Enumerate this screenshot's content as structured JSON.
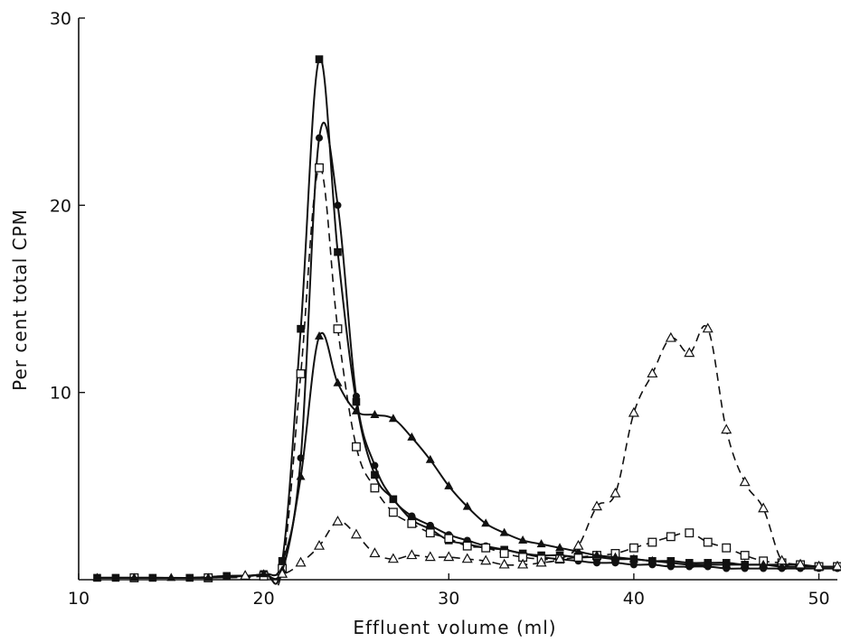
{
  "chart_data": {
    "type": "line",
    "xlabel": "Effluent volume (ml)",
    "ylabel": "Per cent total CPM",
    "xlim": [
      10,
      51
    ],
    "ylim": [
      0,
      30
    ],
    "x_ticks": [
      10,
      20,
      30,
      40,
      50
    ],
    "y_ticks": [
      10,
      20,
      30
    ],
    "grid": false,
    "legend": "none",
    "series": [
      {
        "marker": "filled-square",
        "line": "solid",
        "points": [
          [
            11,
            0.1
          ],
          [
            12,
            0.1
          ],
          [
            14,
            0.1
          ],
          [
            16,
            0.1
          ],
          [
            18,
            0.2
          ],
          [
            20,
            0.3
          ],
          [
            21,
            1.0
          ],
          [
            22,
            13.4
          ],
          [
            23,
            27.8
          ],
          [
            24,
            17.5
          ],
          [
            25,
            9.5
          ],
          [
            26,
            5.6
          ],
          [
            27,
            4.3
          ],
          [
            28,
            3.2
          ],
          [
            29,
            2.7
          ],
          [
            30,
            2.1
          ],
          [
            31,
            1.9
          ],
          [
            32,
            1.7
          ],
          [
            33,
            1.6
          ],
          [
            34,
            1.4
          ],
          [
            35,
            1.3
          ],
          [
            36,
            1.3
          ],
          [
            37,
            1.2
          ],
          [
            38,
            1.2
          ],
          [
            39,
            1.1
          ],
          [
            40,
            1.1
          ],
          [
            41,
            1.0
          ],
          [
            42,
            1.0
          ],
          [
            43,
            0.9
          ],
          [
            44,
            0.9
          ],
          [
            45,
            0.9
          ],
          [
            46,
            0.8
          ],
          [
            47,
            0.8
          ],
          [
            48,
            0.8
          ],
          [
            49,
            0.8
          ],
          [
            50,
            0.7
          ],
          [
            51,
            0.7
          ]
        ]
      },
      {
        "marker": "filled-circle",
        "line": "solid",
        "points": [
          [
            11,
            0.1
          ],
          [
            12,
            0.1
          ],
          [
            14,
            0.1
          ],
          [
            16,
            0.1
          ],
          [
            18,
            0.2
          ],
          [
            20,
            0.3
          ],
          [
            21,
            0.9
          ],
          [
            22,
            6.5
          ],
          [
            23,
            23.6
          ],
          [
            24,
            20.0
          ],
          [
            25,
            9.8
          ],
          [
            26,
            6.1
          ],
          [
            27,
            4.3
          ],
          [
            28,
            3.4
          ],
          [
            29,
            2.9
          ],
          [
            30,
            2.4
          ],
          [
            31,
            2.1
          ],
          [
            32,
            1.8
          ],
          [
            33,
            1.6
          ],
          [
            34,
            1.4
          ],
          [
            35,
            1.2
          ],
          [
            36,
            1.1
          ],
          [
            37,
            1.0
          ],
          [
            38,
            0.9
          ],
          [
            39,
            0.9
          ],
          [
            40,
            0.8
          ],
          [
            41,
            0.8
          ],
          [
            42,
            0.7
          ],
          [
            43,
            0.7
          ],
          [
            44,
            0.7
          ],
          [
            45,
            0.6
          ],
          [
            46,
            0.6
          ],
          [
            47,
            0.6
          ],
          [
            48,
            0.6
          ],
          [
            49,
            0.6
          ],
          [
            50,
            0.6
          ],
          [
            51,
            0.6
          ]
        ]
      },
      {
        "marker": "open-square",
        "line": "dashed",
        "points": [
          [
            13,
            0.1
          ],
          [
            17,
            0.1
          ],
          [
            20,
            0.2
          ],
          [
            21,
            0.6
          ],
          [
            22,
            11.0
          ],
          [
            23,
            22.0
          ],
          [
            24,
            13.4
          ],
          [
            25,
            7.1
          ],
          [
            26,
            4.9
          ],
          [
            27,
            3.6
          ],
          [
            28,
            3.0
          ],
          [
            29,
            2.5
          ],
          [
            30,
            2.2
          ],
          [
            31,
            1.8
          ],
          [
            32,
            1.7
          ],
          [
            33,
            1.4
          ],
          [
            34,
            1.2
          ],
          [
            35,
            1.1
          ],
          [
            36,
            1.1
          ],
          [
            37,
            1.2
          ],
          [
            38,
            1.3
          ],
          [
            39,
            1.4
          ],
          [
            40,
            1.7
          ],
          [
            41,
            2.0
          ],
          [
            42,
            2.3
          ],
          [
            43,
            2.5
          ],
          [
            44,
            2.0
          ],
          [
            45,
            1.7
          ],
          [
            46,
            1.3
          ],
          [
            47,
            1.0
          ],
          [
            48,
            0.9
          ],
          [
            49,
            0.8
          ],
          [
            50,
            0.7
          ],
          [
            51,
            0.7
          ]
        ]
      },
      {
        "marker": "filled-triangle",
        "line": "solid",
        "points": [
          [
            11,
            0.1
          ],
          [
            13,
            0.1
          ],
          [
            15,
            0.1
          ],
          [
            17,
            0.1
          ],
          [
            19,
            0.2
          ],
          [
            20,
            0.3
          ],
          [
            21,
            0.5
          ],
          [
            22,
            5.5
          ],
          [
            23,
            13.0
          ],
          [
            24,
            10.5
          ],
          [
            25,
            9.0
          ],
          [
            26,
            8.8
          ],
          [
            27,
            8.6
          ],
          [
            28,
            7.6
          ],
          [
            29,
            6.4
          ],
          [
            30,
            5.0
          ],
          [
            31,
            3.9
          ],
          [
            32,
            3.0
          ],
          [
            33,
            2.5
          ],
          [
            34,
            2.1
          ],
          [
            35,
            1.9
          ],
          [
            36,
            1.7
          ],
          [
            37,
            1.5
          ],
          [
            38,
            1.3
          ],
          [
            39,
            1.2
          ],
          [
            40,
            1.1
          ],
          [
            41,
            1.0
          ],
          [
            42,
            0.9
          ],
          [
            43,
            0.8
          ],
          [
            44,
            0.8
          ],
          [
            45,
            0.8
          ],
          [
            46,
            0.8
          ],
          [
            47,
            0.8
          ],
          [
            48,
            0.7
          ],
          [
            49,
            0.7
          ],
          [
            50,
            0.7
          ],
          [
            51,
            0.7
          ]
        ]
      },
      {
        "marker": "open-triangle",
        "line": "dashed",
        "points": [
          [
            19,
            0.2
          ],
          [
            21,
            0.3
          ],
          [
            22,
            0.9
          ],
          [
            23,
            1.8
          ],
          [
            24,
            3.1
          ],
          [
            25,
            2.4
          ],
          [
            26,
            1.4
          ],
          [
            27,
            1.1
          ],
          [
            28,
            1.3
          ],
          [
            29,
            1.2
          ],
          [
            30,
            1.2
          ],
          [
            31,
            1.1
          ],
          [
            32,
            1.0
          ],
          [
            33,
            0.8
          ],
          [
            34,
            0.8
          ],
          [
            35,
            0.9
          ],
          [
            36,
            1.1
          ],
          [
            37,
            1.8
          ],
          [
            38,
            3.9
          ],
          [
            39,
            4.6
          ],
          [
            40,
            8.9
          ],
          [
            41,
            11.0
          ],
          [
            42,
            12.9
          ],
          [
            43,
            12.1
          ],
          [
            44,
            13.4
          ],
          [
            45,
            8.0
          ],
          [
            46,
            5.2
          ],
          [
            47,
            3.8
          ],
          [
            48,
            1.0
          ],
          [
            49,
            0.8
          ],
          [
            50,
            0.7
          ],
          [
            51,
            0.7
          ]
        ]
      }
    ]
  }
}
